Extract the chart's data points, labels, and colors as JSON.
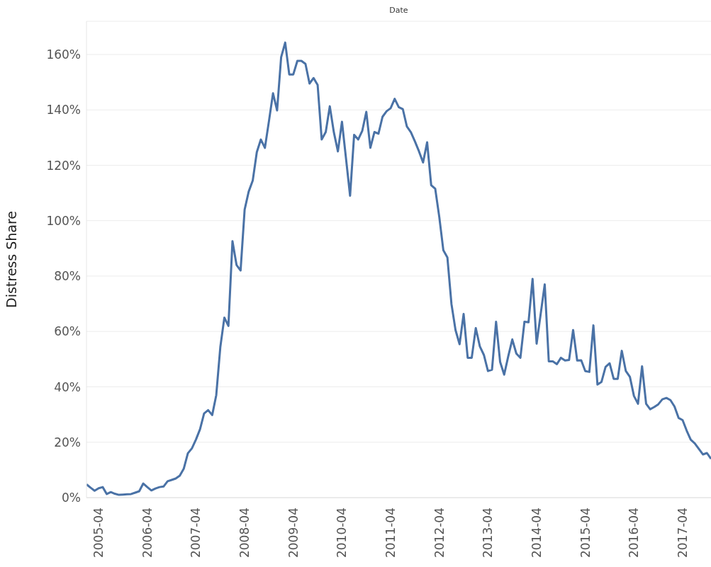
{
  "chart_data": {
    "type": "line",
    "xlabel": "Date",
    "ylabel": "Distress Share",
    "x": [
      "2005-01",
      "2005-02",
      "2005-03",
      "2005-04",
      "2005-05",
      "2005-06",
      "2005-07",
      "2005-08",
      "2005-09",
      "2005-10",
      "2005-11",
      "2005-12",
      "2006-01",
      "2006-02",
      "2006-03",
      "2006-04",
      "2006-05",
      "2006-06",
      "2006-07",
      "2006-08",
      "2006-09",
      "2006-10",
      "2006-11",
      "2006-12",
      "2007-01",
      "2007-02",
      "2007-03",
      "2007-04",
      "2007-05",
      "2007-06",
      "2007-07",
      "2007-08",
      "2007-09",
      "2007-10",
      "2007-11",
      "2007-12",
      "2008-01",
      "2008-02",
      "2008-03",
      "2008-04",
      "2008-05",
      "2008-06",
      "2008-07",
      "2008-08",
      "2008-09",
      "2008-10",
      "2008-11",
      "2008-12",
      "2009-01",
      "2009-02",
      "2009-03",
      "2009-04",
      "2009-05",
      "2009-06",
      "2009-07",
      "2009-08",
      "2009-09",
      "2009-10",
      "2009-11",
      "2009-12",
      "2010-01",
      "2010-02",
      "2010-03",
      "2010-04",
      "2010-05",
      "2010-06",
      "2010-07",
      "2010-08",
      "2010-09",
      "2010-10",
      "2010-11",
      "2010-12",
      "2011-01",
      "2011-02",
      "2011-03",
      "2011-04",
      "2011-05",
      "2011-06",
      "2011-07",
      "2011-08",
      "2011-09",
      "2011-10",
      "2011-11",
      "2011-12",
      "2012-01",
      "2012-02",
      "2012-03",
      "2012-04",
      "2012-05",
      "2012-06",
      "2012-07",
      "2012-08",
      "2012-09",
      "2012-10",
      "2012-11",
      "2012-12",
      "2013-01",
      "2013-02",
      "2013-03",
      "2013-04",
      "2013-05",
      "2013-06",
      "2013-07",
      "2013-08",
      "2013-09",
      "2013-10",
      "2013-11",
      "2013-12",
      "2014-01",
      "2014-02",
      "2014-03",
      "2014-04",
      "2014-05",
      "2014-06",
      "2014-07",
      "2014-08",
      "2014-09",
      "2014-10",
      "2014-11",
      "2014-12",
      "2015-01",
      "2015-02",
      "2015-03",
      "2015-04",
      "2015-05",
      "2015-06",
      "2015-07",
      "2015-08",
      "2015-09",
      "2015-10",
      "2015-11",
      "2015-12",
      "2016-01",
      "2016-02",
      "2016-03",
      "2016-04",
      "2016-05",
      "2016-06",
      "2016-07",
      "2016-08",
      "2016-09",
      "2016-10",
      "2016-11",
      "2016-12",
      "2017-01",
      "2017-02",
      "2017-03",
      "2017-04",
      "2017-05",
      "2017-06",
      "2017-07",
      "2017-08",
      "2017-09",
      "2017-10",
      "2017-11"
    ],
    "series": [
      {
        "color": "#4a72a6",
        "values": [
          4.8,
          3.6,
          2.5,
          3.4,
          3.8,
          1.3,
          2,
          1.4,
          1,
          1.1,
          1.2,
          1.3,
          1.8,
          2.3,
          5.1,
          3.8,
          2.6,
          3.3,
          3.8,
          4,
          5.9,
          6.4,
          6.9,
          7.9,
          10.5,
          16,
          17.8,
          21,
          24.7,
          30.4,
          31.6,
          29.8,
          37,
          54.3,
          65,
          62,
          92.6,
          84,
          82,
          104,
          110.5,
          114.5,
          124.7,
          129.3,
          126.3,
          136,
          146,
          139.8,
          159,
          164.3,
          152.8,
          152.8,
          157.7,
          157.7,
          156.6,
          149.5,
          151.5,
          149,
          129.3,
          132,
          141.3,
          131.9,
          125,
          135.7,
          122.4,
          109,
          131,
          129.3,
          132.4,
          139.3,
          126.3,
          132,
          131.4,
          137.5,
          139.5,
          140.6,
          144,
          141,
          140.3,
          134,
          131.9,
          128.6,
          125,
          121,
          128.3,
          112.8,
          111.5,
          101.3,
          89.3,
          86.7,
          69.9,
          60.5,
          55.4,
          66.3,
          50.5,
          50.5,
          61.2,
          54.6,
          51.5,
          45.7,
          46.2,
          63.5,
          49,
          44.4,
          51,
          57.1,
          52,
          50.5,
          63.5,
          63.3,
          79,
          55.6,
          66.3,
          77,
          49.2,
          49.2,
          48.2,
          50.5,
          49.5,
          49.7,
          60.5,
          49.5,
          49.6,
          45.7,
          45.4,
          62.2,
          40.8,
          41.8,
          47.2,
          48.5,
          42.9,
          42.9,
          53,
          45.7,
          43.6,
          36.7,
          33.9,
          47.4,
          33.9,
          31.9,
          32.7,
          33.7,
          35.5,
          36,
          35.2,
          32.9,
          28.8,
          28,
          24.2,
          20.9,
          19.6,
          17.6,
          15.6,
          16.1,
          14
        ]
      }
    ],
    "xlim": [
      "2005-01",
      "2017-11"
    ],
    "xticks": [
      "2005-04",
      "2006-04",
      "2007-04",
      "2008-04",
      "2009-04",
      "2010-04",
      "2011-04",
      "2012-04",
      "2013-04",
      "2014-04",
      "2015-04",
      "2016-04",
      "2017-04"
    ],
    "ylim": [
      0,
      172
    ],
    "yticks": [
      {
        "value": 0,
        "label": "0%"
      },
      {
        "value": 20,
        "label": "20%"
      },
      {
        "value": 40,
        "label": "40%"
      },
      {
        "value": 60,
        "label": "60%"
      },
      {
        "value": 80,
        "label": "80%"
      },
      {
        "value": 100,
        "label": "100%"
      },
      {
        "value": 120,
        "label": "120%"
      },
      {
        "value": 140,
        "label": "140%"
      },
      {
        "value": 160,
        "label": "160%"
      }
    ],
    "grid": "y"
  }
}
